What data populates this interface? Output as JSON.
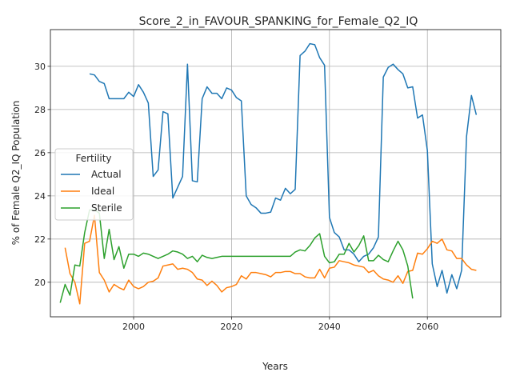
{
  "chart_data": {
    "type": "line",
    "title": "Score_2_in_FAVOUR_SPANKING_for_Female_Q2_IQ",
    "xlabel": "Years",
    "ylabel": "% of Female Q2_IQ Population",
    "xlim": [
      1983,
      2075
    ],
    "ylim": [
      18.4,
      31.7
    ],
    "xticks": [
      2000,
      2020,
      2040,
      2060
    ],
    "yticks": [
      20,
      22,
      24,
      26,
      28,
      30
    ],
    "grid": true,
    "legend": {
      "title": "Fertility",
      "position": "center-left"
    },
    "series": [
      {
        "name": "Actual",
        "color": "#1f77b4",
        "points": [
          [
            1991,
            29.65
          ],
          [
            1992,
            29.6
          ],
          [
            1993,
            29.3
          ],
          [
            1994,
            29.2
          ],
          [
            1995,
            28.5
          ],
          [
            1996,
            28.5
          ],
          [
            1997,
            28.5
          ],
          [
            1998,
            28.5
          ],
          [
            1999,
            28.8
          ],
          [
            2000,
            28.6
          ],
          [
            2001,
            29.15
          ],
          [
            2002,
            28.8
          ],
          [
            2003,
            28.3
          ],
          [
            2004,
            24.9
          ],
          [
            2005,
            25.2
          ],
          [
            2006,
            27.9
          ],
          [
            2007,
            27.8
          ],
          [
            2008,
            23.9
          ],
          [
            2009,
            24.4
          ],
          [
            2010,
            24.9
          ],
          [
            2011,
            30.1
          ],
          [
            2012,
            24.7
          ],
          [
            2013,
            24.65
          ],
          [
            2014,
            28.5
          ],
          [
            2015,
            29.05
          ],
          [
            2016,
            28.75
          ],
          [
            2017,
            28.75
          ],
          [
            2018,
            28.5
          ],
          [
            2019,
            29.0
          ],
          [
            2020,
            28.9
          ],
          [
            2021,
            28.55
          ],
          [
            2022,
            28.4
          ],
          [
            2023,
            24.0
          ],
          [
            2024,
            23.6
          ],
          [
            2025,
            23.45
          ],
          [
            2026,
            23.2
          ],
          [
            2027,
            23.2
          ],
          [
            2028,
            23.25
          ],
          [
            2029,
            23.9
          ],
          [
            2030,
            23.8
          ],
          [
            2031,
            24.35
          ],
          [
            2032,
            24.1
          ],
          [
            2033,
            24.3
          ],
          [
            2034,
            30.5
          ],
          [
            2035,
            30.7
          ],
          [
            2036,
            31.05
          ],
          [
            2037,
            31.0
          ],
          [
            2038,
            30.4
          ],
          [
            2039,
            30.05
          ],
          [
            2040,
            23.0
          ],
          [
            2041,
            22.3
          ],
          [
            2042,
            22.1
          ],
          [
            2043,
            21.5
          ],
          [
            2044,
            21.5
          ],
          [
            2045,
            21.3
          ],
          [
            2046,
            20.95
          ],
          [
            2047,
            21.2
          ],
          [
            2048,
            21.3
          ],
          [
            2049,
            21.6
          ],
          [
            2050,
            22.1
          ],
          [
            2051,
            29.5
          ],
          [
            2052,
            29.95
          ],
          [
            2053,
            30.1
          ],
          [
            2054,
            29.85
          ],
          [
            2055,
            29.65
          ],
          [
            2056,
            29.0
          ],
          [
            2057,
            29.05
          ],
          [
            2058,
            27.6
          ],
          [
            2059,
            27.75
          ],
          [
            2060,
            26.1
          ],
          [
            2061,
            20.85
          ],
          [
            2062,
            19.8
          ],
          [
            2063,
            20.55
          ],
          [
            2064,
            19.5
          ],
          [
            2065,
            20.35
          ],
          [
            2066,
            19.7
          ],
          [
            2067,
            20.55
          ],
          [
            2068,
            26.75
          ],
          [
            2069,
            28.65
          ],
          [
            2070,
            27.75
          ]
        ]
      },
      {
        "name": "Ideal",
        "color": "#ff7f0e",
        "points": [
          [
            1986,
            21.6
          ],
          [
            1987,
            20.4
          ],
          [
            1988,
            20.0
          ],
          [
            1989,
            19.0
          ],
          [
            1990,
            21.8
          ],
          [
            1991,
            21.9
          ],
          [
            1992,
            23.1
          ],
          [
            1993,
            20.45
          ],
          [
            1994,
            20.1
          ],
          [
            1995,
            19.55
          ],
          [
            1996,
            19.9
          ],
          [
            1997,
            19.75
          ],
          [
            1998,
            19.65
          ],
          [
            1999,
            20.1
          ],
          [
            2000,
            19.8
          ],
          [
            2001,
            19.7
          ],
          [
            2002,
            19.8
          ],
          [
            2003,
            20.0
          ],
          [
            2004,
            20.05
          ],
          [
            2005,
            20.2
          ],
          [
            2006,
            20.75
          ],
          [
            2007,
            20.8
          ],
          [
            2008,
            20.85
          ],
          [
            2009,
            20.6
          ],
          [
            2010,
            20.65
          ],
          [
            2011,
            20.6
          ],
          [
            2012,
            20.45
          ],
          [
            2013,
            20.15
          ],
          [
            2014,
            20.1
          ],
          [
            2015,
            19.85
          ],
          [
            2016,
            20.05
          ],
          [
            2017,
            19.85
          ],
          [
            2018,
            19.55
          ],
          [
            2019,
            19.75
          ],
          [
            2020,
            19.8
          ],
          [
            2021,
            19.9
          ],
          [
            2022,
            20.3
          ],
          [
            2023,
            20.15
          ],
          [
            2024,
            20.45
          ],
          [
            2025,
            20.45
          ],
          [
            2026,
            20.4
          ],
          [
            2027,
            20.35
          ],
          [
            2028,
            20.25
          ],
          [
            2029,
            20.45
          ],
          [
            2030,
            20.45
          ],
          [
            2031,
            20.5
          ],
          [
            2032,
            20.5
          ],
          [
            2033,
            20.4
          ],
          [
            2034,
            20.4
          ],
          [
            2035,
            20.25
          ],
          [
            2036,
            20.2
          ],
          [
            2037,
            20.2
          ],
          [
            2038,
            20.6
          ],
          [
            2039,
            20.2
          ],
          [
            2040,
            20.65
          ],
          [
            2041,
            20.7
          ],
          [
            2042,
            21.0
          ],
          [
            2043,
            20.95
          ],
          [
            2044,
            20.9
          ],
          [
            2045,
            20.8
          ],
          [
            2046,
            20.75
          ],
          [
            2047,
            20.7
          ],
          [
            2048,
            20.45
          ],
          [
            2049,
            20.55
          ],
          [
            2050,
            20.3
          ],
          [
            2051,
            20.15
          ],
          [
            2052,
            20.1
          ],
          [
            2053,
            20.0
          ],
          [
            2054,
            20.3
          ],
          [
            2055,
            19.95
          ],
          [
            2056,
            20.5
          ],
          [
            2057,
            20.55
          ],
          [
            2058,
            21.35
          ],
          [
            2059,
            21.3
          ],
          [
            2060,
            21.55
          ],
          [
            2061,
            21.9
          ],
          [
            2062,
            21.8
          ],
          [
            2063,
            22.0
          ],
          [
            2064,
            21.5
          ],
          [
            2065,
            21.45
          ],
          [
            2066,
            21.1
          ],
          [
            2067,
            21.1
          ],
          [
            2068,
            20.8
          ],
          [
            2069,
            20.6
          ],
          [
            2070,
            20.55
          ]
        ]
      },
      {
        "name": "Sterile",
        "color": "#2ca02c",
        "points": [
          [
            1985,
            19.05
          ],
          [
            1986,
            19.9
          ],
          [
            1987,
            19.4
          ],
          [
            1988,
            20.8
          ],
          [
            1989,
            20.75
          ],
          [
            1990,
            22.3
          ],
          [
            1991,
            23.35
          ],
          [
            1992,
            23.35
          ],
          [
            1993,
            23.2
          ],
          [
            1994,
            21.1
          ],
          [
            1995,
            22.45
          ],
          [
            1996,
            21.05
          ],
          [
            1997,
            21.65
          ],
          [
            1998,
            20.65
          ],
          [
            1999,
            21.3
          ],
          [
            2000,
            21.3
          ],
          [
            2001,
            21.2
          ],
          [
            2002,
            21.35
          ],
          [
            2003,
            21.3
          ],
          [
            2004,
            21.2
          ],
          [
            2005,
            21.1
          ],
          [
            2006,
            21.2
          ],
          [
            2007,
            21.3
          ],
          [
            2008,
            21.45
          ],
          [
            2009,
            21.4
          ],
          [
            2010,
            21.3
          ],
          [
            2011,
            21.1
          ],
          [
            2012,
            21.2
          ],
          [
            2013,
            20.95
          ],
          [
            2014,
            21.25
          ],
          [
            2015,
            21.15
          ],
          [
            2016,
            21.1
          ],
          [
            2017,
            21.15
          ],
          [
            2018,
            21.2
          ],
          [
            2019,
            21.2
          ],
          [
            2020,
            21.2
          ],
          [
            2021,
            21.2
          ],
          [
            2022,
            21.2
          ],
          [
            2023,
            21.2
          ],
          [
            2024,
            21.2
          ],
          [
            2025,
            21.2
          ],
          [
            2026,
            21.2
          ],
          [
            2027,
            21.2
          ],
          [
            2028,
            21.2
          ],
          [
            2029,
            21.2
          ],
          [
            2030,
            21.2
          ],
          [
            2031,
            21.2
          ],
          [
            2032,
            21.2
          ],
          [
            2033,
            21.4
          ],
          [
            2034,
            21.5
          ],
          [
            2035,
            21.45
          ],
          [
            2036,
            21.7
          ],
          [
            2037,
            22.05
          ],
          [
            2038,
            22.25
          ],
          [
            2039,
            21.2
          ],
          [
            2040,
            20.9
          ],
          [
            2041,
            20.95
          ],
          [
            2042,
            21.3
          ],
          [
            2043,
            21.3
          ],
          [
            2044,
            21.8
          ],
          [
            2045,
            21.4
          ],
          [
            2046,
            21.7
          ],
          [
            2047,
            22.15
          ],
          [
            2048,
            21.0
          ],
          [
            2049,
            21.0
          ],
          [
            2050,
            21.25
          ],
          [
            2051,
            21.05
          ],
          [
            2052,
            20.95
          ],
          [
            2053,
            21.45
          ],
          [
            2054,
            21.9
          ],
          [
            2055,
            21.5
          ],
          [
            2056,
            20.75
          ],
          [
            2057,
            19.25
          ]
        ]
      }
    ]
  }
}
